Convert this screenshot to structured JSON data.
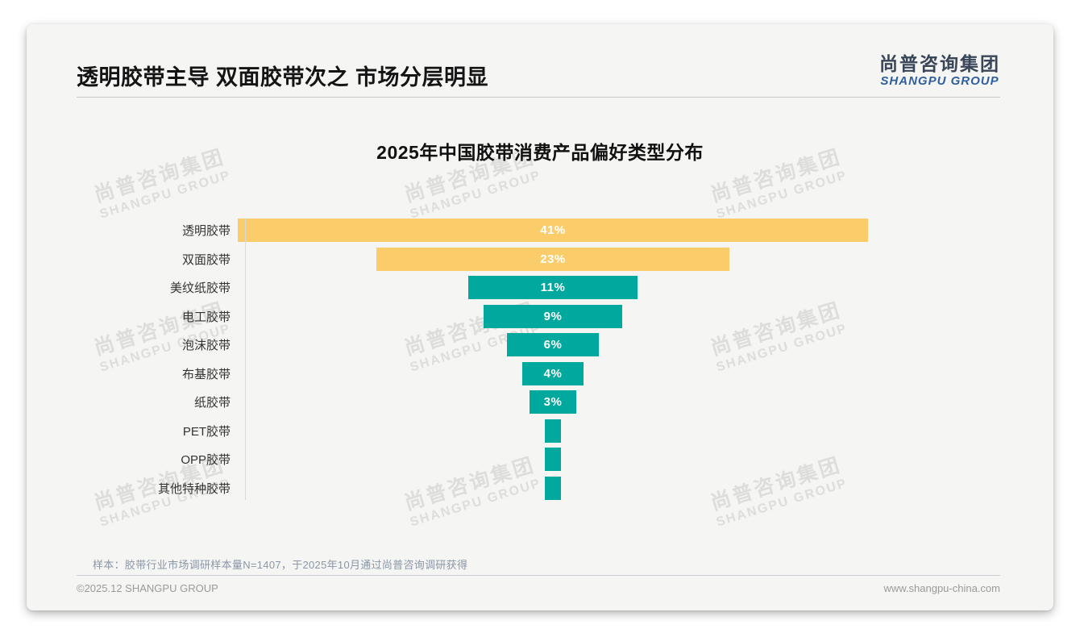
{
  "page": {
    "title": "透明胶带主导 双面胶带次之 市场分层明显",
    "logo": {
      "cn": "尚普咨询集团",
      "en": "SHANGPU GROUP"
    },
    "watermark": {
      "line1": "尚普咨询集团",
      "line2": "SHANGPU GROUP"
    },
    "footnote": "样本：胶带行业市场调研样本量N=1407，于2025年10月通过尚普咨询调研获得",
    "footer_left": "©2025.12 SHANGPU GROUP",
    "footer_right": "www.shangpu-china.com"
  },
  "colors": {
    "bar_yellow": "#FBCD6A",
    "bar_teal": "#00A89D",
    "logo_cn": "#39465A",
    "logo_en": "#2F5F9E"
  },
  "chart_data": {
    "type": "bar",
    "title": "2025年中国胶带消费产品偏好类型分布",
    "orientation": "horizontal-centered-funnel",
    "unit": "%",
    "xmax": 41,
    "grid": false,
    "legend": false,
    "categories": [
      "透明胶带",
      "双面胶带",
      "美纹纸胶带",
      "电工胶带",
      "泡沫胶带",
      "布基胶带",
      "纸胶带",
      "PET胶带",
      "OPP胶带",
      "其他特种胶带"
    ],
    "values": [
      41,
      23,
      11,
      9,
      6,
      4,
      3,
      1,
      1,
      1
    ],
    "value_labels": [
      "41%",
      "23%",
      "11%",
      "9%",
      "6%",
      "4%",
      "3%",
      "",
      "",
      ""
    ],
    "bar_colors": [
      "bar_yellow",
      "bar_yellow",
      "bar_teal",
      "bar_teal",
      "bar_teal",
      "bar_teal",
      "bar_teal",
      "bar_teal",
      "bar_teal",
      "bar_teal"
    ]
  },
  "watermark_positions": {
    "x_centers": [
      167,
      552,
      932
    ],
    "y_centers": [
      195,
      385,
      577
    ]
  }
}
